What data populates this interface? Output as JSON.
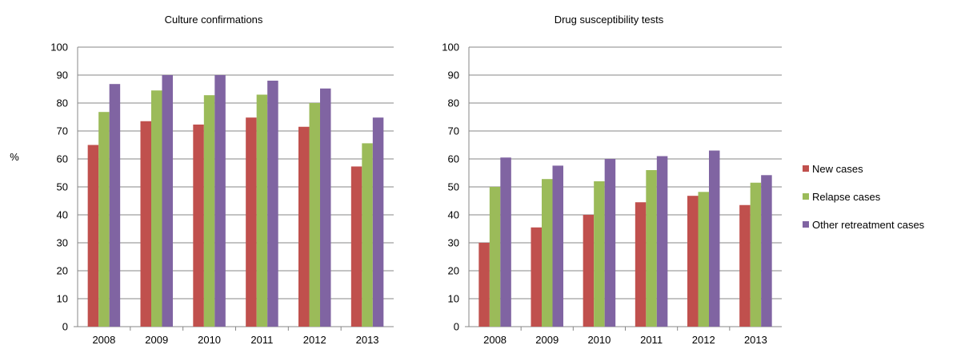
{
  "y_label": "%",
  "chart_data": [
    {
      "type": "bar",
      "title": "Culture confirmations",
      "xlabel": "",
      "ylabel": "%",
      "ylim": [
        0,
        100
      ],
      "yticks": [
        "0",
        "10",
        "20",
        "30",
        "40",
        "50",
        "60",
        "70",
        "80",
        "90",
        "100"
      ],
      "grid": true,
      "categories": [
        "2008",
        "2009",
        "2010",
        "2011",
        "2012",
        "2013"
      ],
      "series": [
        {
          "name": "New cases",
          "values": [
            65,
            73.5,
            72.3,
            74.8,
            71.5,
            57.3
          ]
        },
        {
          "name": "Relapse cases",
          "values": [
            76.8,
            84.5,
            82.8,
            83,
            80,
            65.6
          ]
        },
        {
          "name": "Other retreatment cases",
          "values": [
            86.8,
            90,
            90,
            88,
            85.2,
            74.8
          ]
        }
      ]
    },
    {
      "type": "bar",
      "title": "Drug susceptibility tests",
      "xlabel": "",
      "ylabel": "",
      "ylim": [
        0,
        100
      ],
      "yticks": [
        "0",
        "10",
        "20",
        "30",
        "40",
        "50",
        "60",
        "70",
        "80",
        "90",
        "100"
      ],
      "grid": true,
      "categories": [
        "2008",
        "2009",
        "2010",
        "2011",
        "2012",
        "2013"
      ],
      "series": [
        {
          "name": "New cases",
          "values": [
            30,
            35.5,
            40,
            44.5,
            46.8,
            43.5
          ]
        },
        {
          "name": "Relapse cases",
          "values": [
            50,
            52.8,
            52,
            56,
            48.2,
            51.5
          ]
        },
        {
          "name": "Other retreatment cases",
          "values": [
            60.5,
            57.6,
            60,
            61,
            63,
            54.2
          ]
        }
      ]
    }
  ],
  "legend": {
    "placement": "right",
    "items": [
      {
        "label": "New cases",
        "color": "#C0504D"
      },
      {
        "label": "Relapse cases",
        "color": "#9BBB59"
      },
      {
        "label": "Other retreatment cases",
        "color": "#8064A2"
      }
    ]
  },
  "colors": {
    "grid": "#878787",
    "axis": "#878787"
  }
}
